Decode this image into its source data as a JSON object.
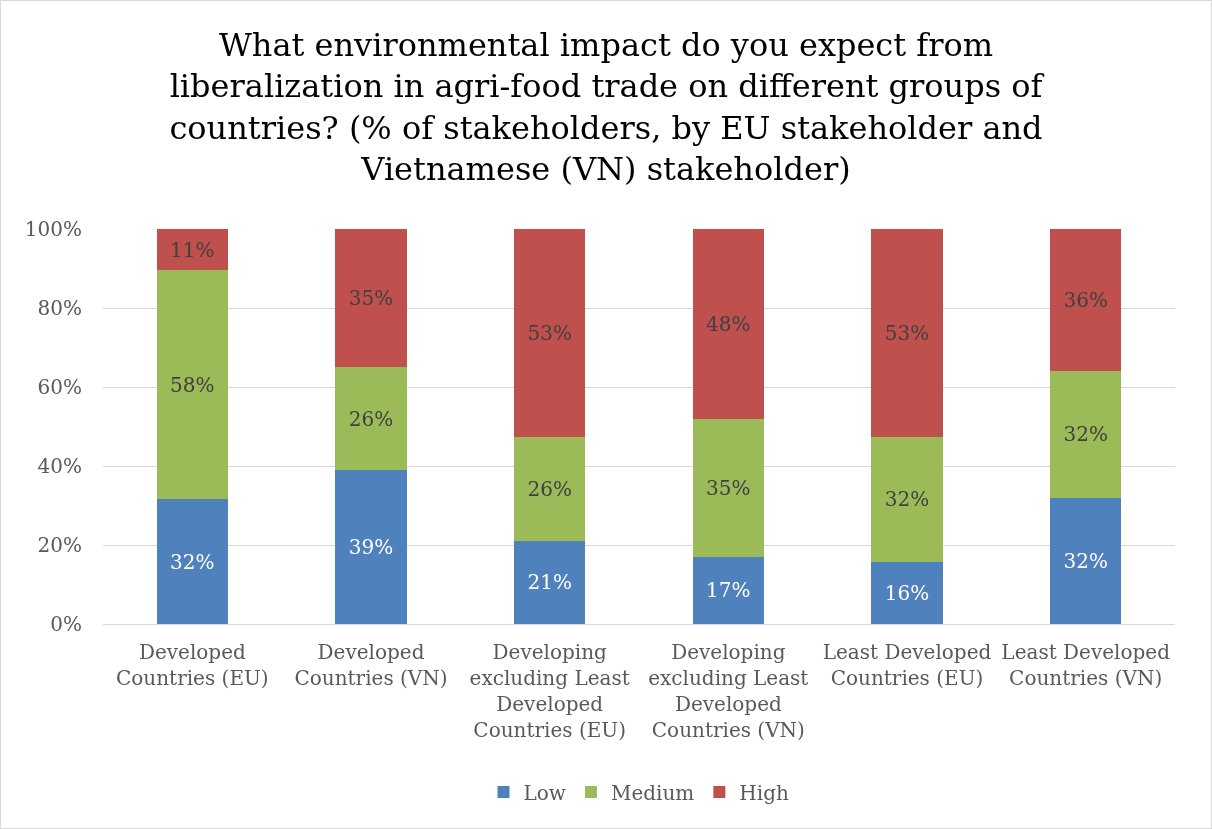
{
  "chart_data": {
    "type": "bar",
    "title": "What environmental impact do you expect from liberalization in agri-food trade on different groups of countries? (% of stakeholders, by EU stakeholder and Vietnamese (VN) stakeholder)",
    "categories": [
      "Developed Countries (EU)",
      "Developed Countries (VN)",
      "Developing excluding Least Developed Countries (EU)",
      "Developing excluding Least Developed Countries (VN)",
      "Least Developed Countries (EU)",
      "Least Developed Countries (VN)"
    ],
    "stacked": true,
    "series": [
      {
        "name": "Low",
        "color": "#4f81bd",
        "values": [
          31.6,
          39,
          21.1,
          17,
          15.8,
          32
        ],
        "value_labels": [
          "32%",
          "39%",
          "21%",
          "17%",
          "16%",
          "32%"
        ]
      },
      {
        "name": "Medium",
        "color": "#9bbb59",
        "values": [
          57.9,
          26,
          26.3,
          35,
          31.6,
          32
        ],
        "value_labels": [
          "58%",
          "26%",
          "26%",
          "35%",
          "32%",
          "32%"
        ]
      },
      {
        "name": "High",
        "color": "#c0504d",
        "values": [
          10.5,
          35,
          52.6,
          48,
          52.6,
          36
        ],
        "value_labels": [
          "11%",
          "35%",
          "53%",
          "48%",
          "53%",
          "36%"
        ]
      }
    ],
    "ylim": [
      0,
      100
    ],
    "yticks": [
      {
        "value": 0,
        "label": "0%"
      },
      {
        "value": 20,
        "label": "20%"
      },
      {
        "value": 40,
        "label": "40%"
      },
      {
        "value": 60,
        "label": "60%"
      },
      {
        "value": 80,
        "label": "80%"
      },
      {
        "value": 100,
        "label": "100%"
      }
    ],
    "grid": "y",
    "legend": "bottom"
  }
}
